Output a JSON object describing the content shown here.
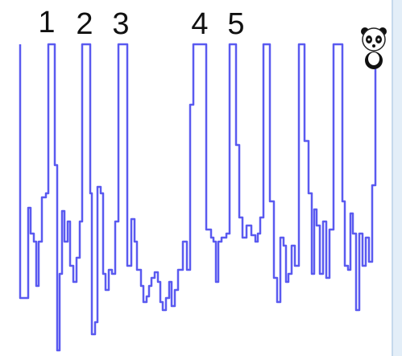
{
  "labels": [
    "1",
    "2",
    "3",
    "4",
    "5"
  ]
}
